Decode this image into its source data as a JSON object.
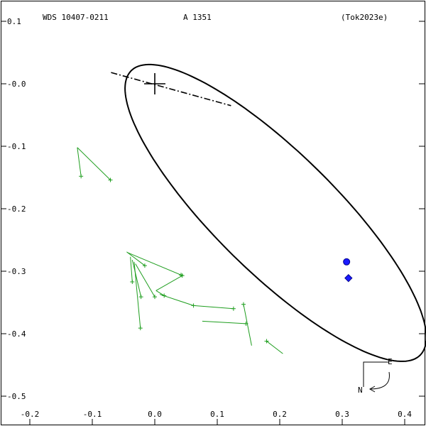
{
  "header": {
    "wds": "WDS 10407-0211",
    "discoverer": "A  1351",
    "reference": "(Tok2023e)"
  },
  "compass": {
    "east": "E",
    "north": "N"
  },
  "colors": {
    "orbit": "#000000",
    "observations": "#1f9e1f",
    "predicted": "#1a1aff"
  },
  "chart_data": {
    "type": "scatter",
    "xlim": [
      -0.2,
      0.4
    ],
    "ylim": [
      -0.5,
      0.1
    ],
    "x_ticks": [
      {
        "value": -0.2,
        "label": "-0.2"
      },
      {
        "value": -0.1,
        "label": "-0.1"
      },
      {
        "value": 0.0,
        "label": "0.0"
      },
      {
        "value": 0.1,
        "label": "0.1"
      },
      {
        "value": 0.2,
        "label": "0.2"
      },
      {
        "value": 0.3,
        "label": "0.3"
      },
      {
        "value": 0.4,
        "label": "0.4"
      }
    ],
    "y_ticks": [
      {
        "value": 0.1,
        "label": "0.1"
      },
      {
        "value": 0.0,
        "label": "-0.0"
      },
      {
        "value": -0.1,
        "label": "-0.1"
      },
      {
        "value": -0.2,
        "label": "-0.2"
      },
      {
        "value": -0.3,
        "label": "-0.3"
      },
      {
        "value": -0.4,
        "label": "-0.4"
      },
      {
        "value": -0.5,
        "label": "-0.5"
      }
    ],
    "primary": {
      "x": 0.0,
      "y": 0.0
    },
    "orbit": {
      "center": [
        0.1935,
        -0.2067
      ],
      "semi_major": 0.3245,
      "semi_minor": 0.0962,
      "angle_deg": -44.5
    },
    "node_line": [
      [
        -0.07,
        0.018
      ],
      [
        0.122,
        -0.035
      ]
    ],
    "observations": [
      {
        "obs": [
          -0.118,
          -0.148
        ],
        "orbit": [
          -0.124,
          -0.102
        ]
      },
      {
        "obs": [
          -0.071,
          -0.154
        ],
        "orbit": [
          -0.124,
          -0.102
        ]
      },
      {
        "obs": [
          -0.016,
          -0.291
        ],
        "orbit": [
          -0.045,
          -0.269
        ]
      },
      {
        "obs": [
          0.042,
          -0.306
        ],
        "orbit": [
          -0.044,
          -0.27
        ]
      },
      {
        "obs": [
          0.044,
          -0.307
        ],
        "orbit": [
          0.002,
          -0.331
        ]
      },
      {
        "obs": [
          -0.036,
          -0.317
        ],
        "orbit": [
          -0.039,
          -0.277
        ]
      },
      {
        "obs": [
          -0.022,
          -0.341
        ],
        "orbit": [
          -0.036,
          -0.282
        ]
      },
      {
        "obs": [
          0.0,
          -0.341
        ],
        "orbit": [
          -0.031,
          -0.288
        ]
      },
      {
        "obs": [
          0.015,
          -0.339
        ],
        "orbit": [
          0.002,
          -0.331
        ]
      },
      {
        "obs": [
          -0.023,
          -0.391
        ],
        "orbit": [
          -0.033,
          -0.285
        ]
      },
      {
        "obs": [
          0.062,
          -0.355
        ],
        "orbit": [
          0.008,
          -0.337
        ]
      },
      {
        "obs": [
          0.126,
          -0.36
        ],
        "orbit": [
          0.062,
          -0.355
        ]
      },
      {
        "obs": [
          0.142,
          -0.353
        ],
        "orbit": [
          0.155,
          -0.419
        ]
      },
      {
        "obs": [
          0.146,
          -0.384
        ],
        "orbit": [
          0.076,
          -0.38
        ]
      },
      {
        "obs": [
          0.179,
          -0.412
        ],
        "orbit": [
          0.205,
          -0.432
        ]
      }
    ],
    "predicted": [
      {
        "x": 0.307,
        "y": -0.285,
        "shape": "circle"
      },
      {
        "x": 0.31,
        "y": -0.311,
        "shape": "diamond"
      }
    ]
  }
}
